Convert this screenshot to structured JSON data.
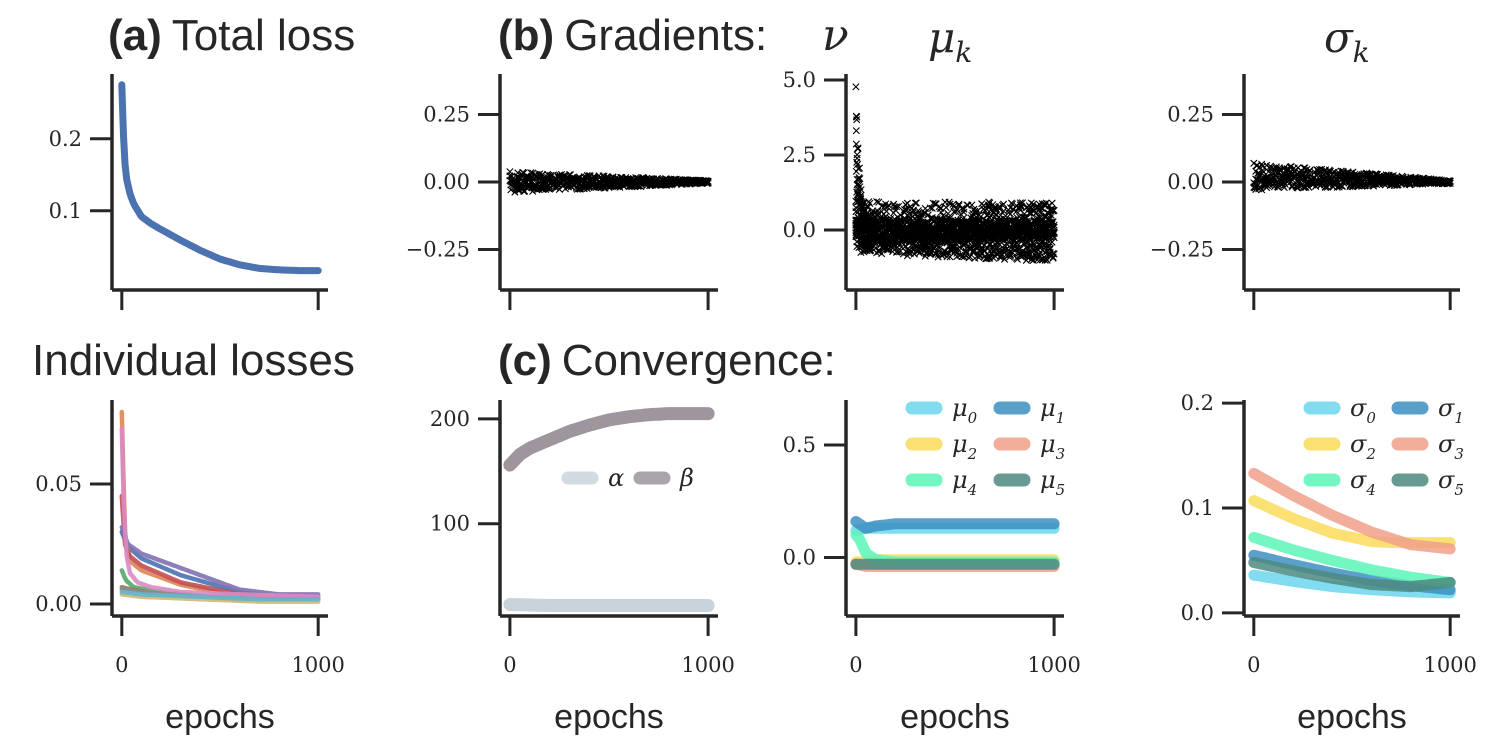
{
  "headings": {
    "a_bold": "(a)",
    "a_text": "Total loss",
    "b_bold": "(b)",
    "b_text": "Gradients:",
    "b_nu": "ν",
    "mu_title": "μ",
    "mu_sub": "k",
    "sigma_title": "σ",
    "sigma_sub": "k",
    "individual": "Individual losses",
    "c_bold": "(c)",
    "c_text": "Convergence:"
  },
  "colors": {
    "axis": "#262626",
    "total_loss": "#4c72b0",
    "alpha": "#c9d3dc",
    "beta": "#9e959d",
    "mu": [
      "#6bd6ec",
      "#3d8fc1",
      "#fadc5a",
      "#f0a08a",
      "#5cf5b9",
      "#4d8a80"
    ],
    "individual": [
      "#4c72b0",
      "#dd8452",
      "#55a868",
      "#c44e52",
      "#8172b3",
      "#937860",
      "#da8bc3",
      "#8c8c8c",
      "#ccb974",
      "#64b5cd"
    ]
  },
  "chart_data": [
    {
      "id": "total_loss",
      "type": "line",
      "xlabel": "",
      "ylabel": "",
      "xlim": [
        -50,
        1050
      ],
      "ylim": [
        -0.01,
        0.29
      ],
      "xticks": [
        0,
        1000
      ],
      "xtick_labels": [
        "",
        ""
      ],
      "yticks": [
        0.1,
        0.2
      ],
      "ytick_labels": [
        "0.1",
        "0.2"
      ],
      "series": [
        {
          "x": [
            0,
            10,
            20,
            40,
            60,
            100,
            150,
            200,
            300,
            400,
            500,
            600,
            700,
            800,
            900,
            1000
          ],
          "y": [
            0.275,
            0.19,
            0.15,
            0.125,
            0.11,
            0.092,
            0.082,
            0.074,
            0.059,
            0.045,
            0.033,
            0.025,
            0.02,
            0.018,
            0.017,
            0.017
          ]
        }
      ]
    },
    {
      "id": "grad_nu",
      "type": "scatter",
      "xlim": [
        -50,
        1050
      ],
      "ylim": [
        -0.4,
        0.4
      ],
      "xticks": [
        0,
        1000
      ],
      "xtick_labels": [
        "",
        ""
      ],
      "yticks": [
        -0.25,
        0.0,
        0.25
      ],
      "ytick_labels": [
        "−0.25",
        "0.00",
        "0.25"
      ],
      "marker": "x",
      "bands": [
        {
          "center": [
            0,
            0
          ],
          "spread": [
            0.04,
            0.005
          ]
        }
      ]
    },
    {
      "id": "grad_mu",
      "type": "scatter",
      "xlim": [
        -50,
        1050
      ],
      "ylim": [
        -2.0,
        5.2
      ],
      "xticks": [
        0,
        1000
      ],
      "xtick_labels": [
        "",
        ""
      ],
      "yticks": [
        0.0,
        2.5,
        5.0
      ],
      "ytick_labels": [
        "0.0",
        "2.5",
        "5.0"
      ],
      "marker": "x",
      "bands": [
        {
          "center": [
            0.1,
            0.35
          ],
          "spread": [
            0.9,
            0.55
          ]
        },
        {
          "center": [
            0.0,
            0.0
          ],
          "spread": [
            0.4,
            0.3
          ]
        },
        {
          "center": [
            -0.2,
            -0.55
          ],
          "spread": [
            0.6,
            0.5
          ]
        }
      ]
    },
    {
      "id": "grad_sigma",
      "type": "scatter",
      "xlim": [
        -50,
        1050
      ],
      "ylim": [
        -0.4,
        0.4
      ],
      "xticks": [
        0,
        1000
      ],
      "xtick_labels": [
        "",
        ""
      ],
      "yticks": [
        -0.25,
        0.0,
        0.25
      ],
      "ytick_labels": [
        "−0.25",
        "0.00",
        "0.25"
      ],
      "marker": "x",
      "bands": [
        {
          "center": [
            0.02,
            0.0
          ],
          "spread": [
            0.05,
            0.006
          ]
        }
      ]
    },
    {
      "id": "individual_losses",
      "type": "line",
      "xlabel": "epochs",
      "xlim": [
        -50,
        1050
      ],
      "ylim": [
        -0.005,
        0.085
      ],
      "xticks": [
        0,
        1000
      ],
      "xtick_labels": [
        "0",
        "1000"
      ],
      "yticks": [
        0.0,
        0.05
      ],
      "ytick_labels": [
        "0.00",
        "0.05"
      ],
      "series": [
        {
          "x": [
            0,
            30,
            100,
            300,
            600,
            800,
            1000
          ],
          "y": [
            0.03,
            0.024,
            0.019,
            0.012,
            0.005,
            0.003,
            0.003
          ]
        },
        {
          "x": [
            0,
            15,
            40,
            100,
            300,
            600,
            800,
            1000
          ],
          "y": [
            0.08,
            0.03,
            0.018,
            0.014,
            0.008,
            0.003,
            0.002,
            0.002
          ]
        },
        {
          "x": [
            0,
            20,
            60,
            200,
            600,
            1000
          ],
          "y": [
            0.014,
            0.01,
            0.007,
            0.005,
            0.002,
            0.002
          ]
        },
        {
          "x": [
            0,
            15,
            40,
            100,
            300,
            600,
            1000
          ],
          "y": [
            0.045,
            0.025,
            0.02,
            0.016,
            0.009,
            0.004,
            0.003
          ]
        },
        {
          "x": [
            0,
            30,
            100,
            200,
            400,
            600,
            800,
            1000
          ],
          "y": [
            0.032,
            0.025,
            0.021,
            0.018,
            0.012,
            0.006,
            0.004,
            0.004
          ]
        },
        {
          "x": [
            0,
            50,
            200,
            600,
            1000
          ],
          "y": [
            0.007,
            0.006,
            0.004,
            0.002,
            0.002
          ]
        },
        {
          "x": [
            0,
            10,
            25,
            40,
            80,
            150,
            300,
            600,
            1000
          ],
          "y": [
            0.073,
            0.04,
            0.02,
            0.013,
            0.009,
            0.007,
            0.005,
            0.004,
            0.003
          ]
        },
        {
          "x": [
            0,
            100,
            400,
            700,
            1000
          ],
          "y": [
            0.006,
            0.005,
            0.003,
            0.002,
            0.002
          ]
        },
        {
          "x": [
            0,
            100,
            400,
            700,
            1000
          ],
          "y": [
            0.004,
            0.003,
            0.002,
            0.001,
            0.001
          ]
        },
        {
          "x": [
            0,
            100,
            400,
            700,
            1000
          ],
          "y": [
            0.005,
            0.004,
            0.003,
            0.002,
            0.002
          ]
        }
      ]
    },
    {
      "id": "conv_alpha_beta",
      "type": "line",
      "xlabel": "epochs",
      "xlim": [
        -50,
        1050
      ],
      "ylim": [
        12,
        218
      ],
      "xticks": [
        0,
        1000
      ],
      "xtick_labels": [
        "0",
        "1000"
      ],
      "yticks": [
        100,
        200
      ],
      "ytick_labels": [
        "100",
        "200"
      ],
      "legend": {
        "placement": "right",
        "entries": [
          "α",
          "β"
        ]
      },
      "series": [
        {
          "name": "α",
          "x": [
            0,
            200,
            400,
            600,
            800,
            1000
          ],
          "y": [
            23,
            22,
            22,
            22,
            22,
            22
          ]
        },
        {
          "name": "β",
          "x": [
            0,
            50,
            100,
            200,
            300,
            400,
            500,
            600,
            700,
            800,
            900,
            1000
          ],
          "y": [
            156,
            166,
            172,
            180,
            188,
            194,
            199,
            202,
            204,
            205,
            205,
            205
          ]
        }
      ]
    },
    {
      "id": "conv_mu",
      "type": "line",
      "xlabel": "epochs",
      "xlim": [
        -50,
        1050
      ],
      "ylim": [
        -0.26,
        0.7
      ],
      "xticks": [
        0,
        1000
      ],
      "xtick_labels": [
        "0",
        "1000"
      ],
      "yticks": [
        0.0,
        0.5
      ],
      "ytick_labels": [
        "0.0",
        "0.5"
      ],
      "legend": {
        "placement": "upper right",
        "entries": [
          "μ0",
          "μ1",
          "μ2",
          "μ3",
          "μ4",
          "μ5"
        ]
      },
      "series": [
        {
          "name": "μ0",
          "x": [
            0,
            50,
            100,
            200,
            400,
            1000
          ],
          "y": [
            0.12,
            0.13,
            0.13,
            0.13,
            0.13,
            0.13
          ]
        },
        {
          "name": "μ1",
          "x": [
            0,
            50,
            100,
            200,
            400,
            1000
          ],
          "y": [
            0.16,
            0.13,
            0.14,
            0.15,
            0.15,
            0.15
          ]
        },
        {
          "name": "μ2",
          "x": [
            0,
            50,
            100,
            200,
            400,
            1000
          ],
          "y": [
            -0.02,
            -0.02,
            -0.01,
            -0.01,
            -0.01,
            -0.01
          ]
        },
        {
          "name": "μ3",
          "x": [
            0,
            50,
            100,
            200,
            400,
            1000
          ],
          "y": [
            -0.03,
            -0.04,
            -0.04,
            -0.04,
            -0.04,
            -0.04
          ]
        },
        {
          "name": "μ4",
          "x": [
            0,
            20,
            50,
            100,
            200,
            400,
            1000
          ],
          "y": [
            0.1,
            0.08,
            0.02,
            -0.01,
            -0.02,
            -0.02,
            -0.02
          ]
        },
        {
          "name": "μ5",
          "x": [
            0,
            50,
            100,
            200,
            400,
            1000
          ],
          "y": [
            -0.03,
            -0.03,
            -0.03,
            -0.03,
            -0.03,
            -0.03
          ]
        }
      ]
    },
    {
      "id": "conv_sigma",
      "type": "line",
      "xlabel": "epochs",
      "xlim": [
        -50,
        1050
      ],
      "ylim": [
        -0.003,
        0.203
      ],
      "xticks": [
        0,
        1000
      ],
      "xtick_labels": [
        "0",
        "1000"
      ],
      "yticks": [
        0.0,
        0.1,
        0.2
      ],
      "ytick_labels": [
        "0.0",
        "0.1",
        "0.2"
      ],
      "legend": {
        "placement": "upper right",
        "entries": [
          "σ0",
          "σ1",
          "σ2",
          "σ3",
          "σ4",
          "σ5"
        ]
      },
      "series": [
        {
          "name": "σ0",
          "x": [
            0,
            200,
            400,
            600,
            800,
            1000
          ],
          "y": [
            0.036,
            0.03,
            0.025,
            0.022,
            0.02,
            0.019
          ]
        },
        {
          "name": "σ1",
          "x": [
            0,
            200,
            400,
            600,
            800,
            1000
          ],
          "y": [
            0.055,
            0.046,
            0.038,
            0.031,
            0.026,
            0.022
          ]
        },
        {
          "name": "σ2",
          "x": [
            0,
            200,
            400,
            600,
            700,
            800,
            1000
          ],
          "y": [
            0.107,
            0.09,
            0.076,
            0.068,
            0.067,
            0.067,
            0.067
          ]
        },
        {
          "name": "σ3",
          "x": [
            0,
            200,
            400,
            600,
            800,
            1000
          ],
          "y": [
            0.133,
            0.112,
            0.093,
            0.077,
            0.065,
            0.061
          ]
        },
        {
          "name": "σ4",
          "x": [
            0,
            200,
            400,
            600,
            800,
            1000
          ],
          "y": [
            0.072,
            0.06,
            0.05,
            0.041,
            0.034,
            0.029
          ]
        },
        {
          "name": "σ5",
          "x": [
            0,
            200,
            400,
            600,
            800,
            1000
          ],
          "y": [
            0.048,
            0.04,
            0.033,
            0.027,
            0.025,
            0.029
          ]
        }
      ]
    }
  ]
}
